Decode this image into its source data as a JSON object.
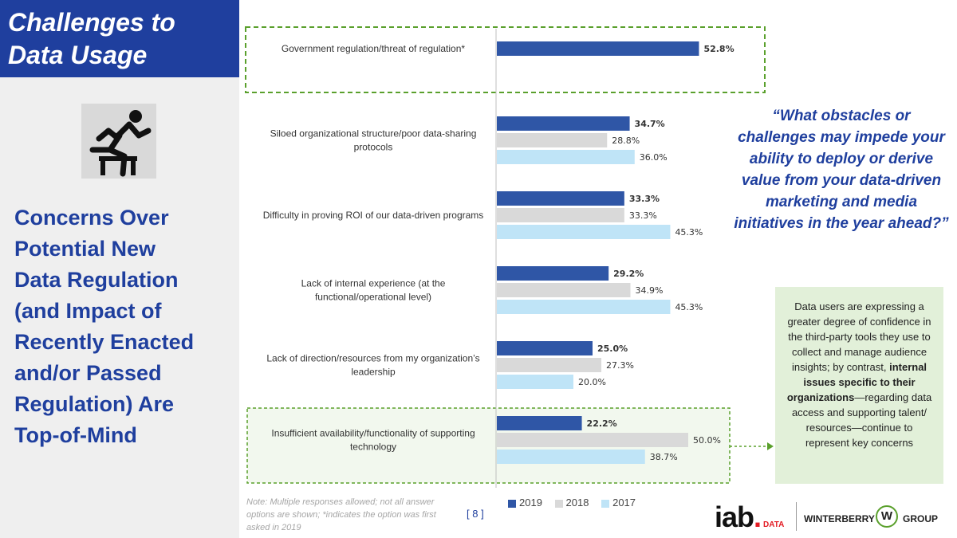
{
  "sidebar": {
    "title": "Challenges to\nData Usage",
    "icon": "running-over-hurdle-icon",
    "subtitle": "Concerns Over\nPotential New\nData Regulation\n(and Impact of\nRecently Enacted\nand/or Passed\nRegulation) Are\nTop-of-Mind"
  },
  "chart_data": {
    "type": "bar",
    "orientation": "horizontal",
    "categories": [
      [
        "Government regulation/threat of regulation*"
      ],
      [
        "Siloed organizational structure/poor data-sharing",
        "protocols"
      ],
      [
        "Difficulty in proving ROI of our data-driven programs"
      ],
      [
        "Lack of internal experience (at the",
        "functional/operational level)"
      ],
      [
        "Lack of direction/resources from my organization’s",
        "leadership"
      ],
      [
        "Insufficient availability/functionality of supporting",
        "technology"
      ]
    ],
    "series": [
      {
        "name": "2019",
        "color": "#2f56a6",
        "values": [
          52.8,
          34.7,
          33.3,
          29.2,
          25.0,
          22.2
        ],
        "labels": [
          "52.8%",
          "34.7%",
          "33.3%",
          "29.2%",
          "25.0%",
          "22.2%"
        ]
      },
      {
        "name": "2018",
        "color": "#d9d9d9",
        "values": [
          null,
          28.8,
          33.3,
          34.9,
          27.3,
          50.0
        ],
        "labels": [
          "",
          "28.8%",
          "33.3%",
          "34.9%",
          "27.3%",
          "50.0%"
        ]
      },
      {
        "name": "2017",
        "color": "#bfe4f7",
        "values": [
          null,
          36.0,
          45.3,
          45.3,
          20.0,
          38.7
        ],
        "labels": [
          "",
          "36.0%",
          "45.3%",
          "45.3%",
          "20.0%",
          "38.7%"
        ]
      }
    ],
    "highlighted_categories": [
      0,
      5
    ],
    "legend": "bottom"
  },
  "quote": "“What obstacles or challenges may impede your ability to deploy or derive value from your data-driven marketing and media initiatives in the year ahead?”",
  "callout": {
    "before": "Data users are expressing a greater degree of confidence in the third-party tools they use to collect and manage audience insights; by contrast, ",
    "bold": "internal issues specific to their organizations",
    "after": "—regarding data access and supporting talent/ resources—continue to represent key concerns"
  },
  "note": "Note: Multiple responses allowed; not all answer options are shown; *indicates the option was first asked in 2019",
  "page_number": "[ 8 ]",
  "logos": {
    "iab": "iab",
    "iab_dot": ".",
    "iab_data": "DATA",
    "winterberry_left": "WINTERBERRY",
    "winterberry_mark": "W",
    "winterberry_right": "GROUP"
  }
}
